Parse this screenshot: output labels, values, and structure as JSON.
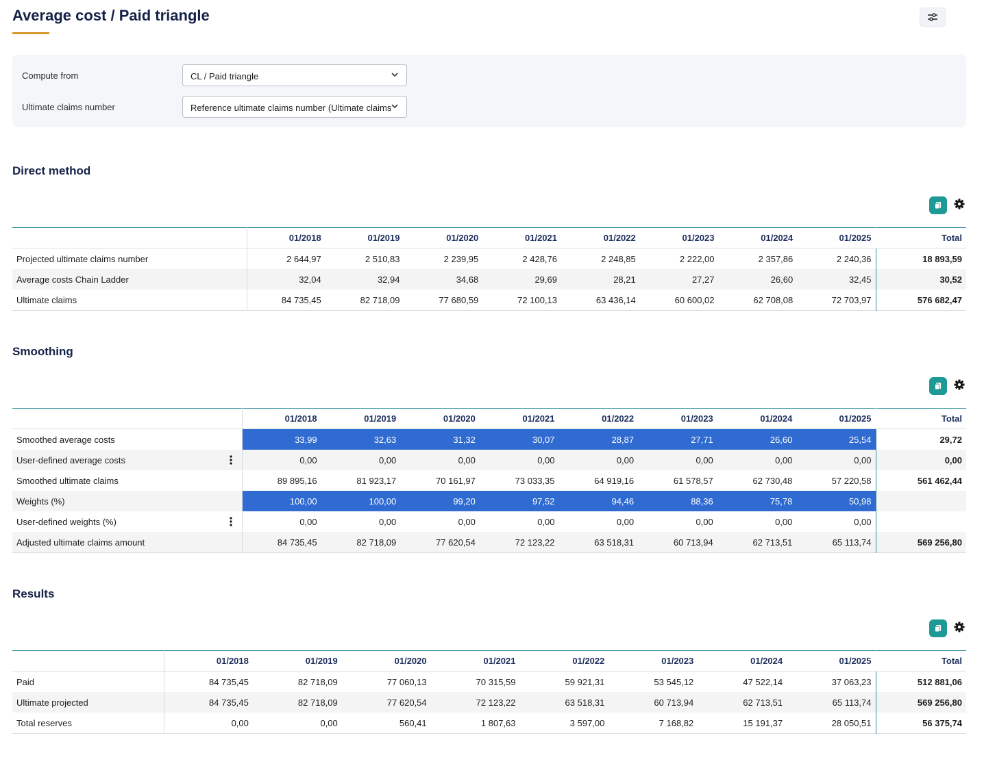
{
  "header": {
    "title": "Average cost / Paid triangle"
  },
  "controls": [
    {
      "label": "Compute from",
      "value": "CL / Paid triangle"
    },
    {
      "label": "Ultimate claims number",
      "value": "Reference ultimate claims number (Ultimate claims"
    }
  ],
  "sections": [
    {
      "title": "Direct method",
      "columns": [
        "01/2018",
        "01/2019",
        "01/2020",
        "01/2021",
        "01/2022",
        "01/2023",
        "01/2024",
        "01/2025",
        "Total"
      ],
      "rows": [
        {
          "label": "Projected ultimate claims number",
          "cells": [
            "2 644,97",
            "2 510,83",
            "2 239,95",
            "2 428,76",
            "2 248,85",
            "2 222,00",
            "2 357,86",
            "2 240,36"
          ],
          "total": "18 893,59"
        },
        {
          "label": "Average costs Chain Ladder",
          "cells": [
            "32,04",
            "32,94",
            "34,68",
            "29,69",
            "28,21",
            "27,27",
            "26,60",
            "32,45"
          ],
          "total": "30,52"
        },
        {
          "label": "Ultimate claims",
          "cells": [
            "84 735,45",
            "82 718,09",
            "77 680,59",
            "72 100,13",
            "63 436,14",
            "60 600,02",
            "62 708,08",
            "72 703,97"
          ],
          "total": "576 682,47"
        }
      ]
    },
    {
      "title": "Smoothing",
      "columns": [
        "01/2018",
        "01/2019",
        "01/2020",
        "01/2021",
        "01/2022",
        "01/2023",
        "01/2024",
        "01/2025",
        "Total"
      ],
      "rows": [
        {
          "label": "Smoothed average costs",
          "highlight": true,
          "cells": [
            "33,99",
            "32,63",
            "31,32",
            "30,07",
            "28,87",
            "27,71",
            "26,60",
            "25,54"
          ],
          "total": "29,72"
        },
        {
          "label": "User-defined average costs",
          "menu": true,
          "cells": [
            "0,00",
            "0,00",
            "0,00",
            "0,00",
            "0,00",
            "0,00",
            "0,00",
            "0,00"
          ],
          "total": "0,00"
        },
        {
          "label": "Smoothed ultimate claims",
          "cells": [
            "89 895,16",
            "81 923,17",
            "70 161,97",
            "73 033,35",
            "64 919,16",
            "61 578,57",
            "62 730,48",
            "57 220,58"
          ],
          "total": "561 462,44"
        },
        {
          "label": "Weights (%)",
          "highlight": true,
          "cells": [
            "100,00",
            "100,00",
            "99,20",
            "97,52",
            "94,46",
            "88,36",
            "75,78",
            "50,98"
          ]
        },
        {
          "label": "User-defined weights (%)",
          "menu": true,
          "cells": [
            "0,00",
            "0,00",
            "0,00",
            "0,00",
            "0,00",
            "0,00",
            "0,00",
            "0,00"
          ]
        },
        {
          "label": "Adjusted ultimate claims amount",
          "cells": [
            "84 735,45",
            "82 718,09",
            "77 620,54",
            "72 123,22",
            "63 518,31",
            "60 713,94",
            "62 713,51",
            "65 113,74"
          ],
          "total": "569 256,80"
        }
      ]
    },
    {
      "title": "Results",
      "columns": [
        "01/2018",
        "01/2019",
        "01/2020",
        "01/2021",
        "01/2022",
        "01/2023",
        "01/2024",
        "01/2025",
        "Total"
      ],
      "rows": [
        {
          "label": "Paid",
          "cells": [
            "84 735,45",
            "82 718,09",
            "77 060,13",
            "70 315,59",
            "59 921,31",
            "53 545,12",
            "47 522,14",
            "37 063,23"
          ],
          "total": "512 881,06"
        },
        {
          "label": "Ultimate projected",
          "cells": [
            "84 735,45",
            "82 718,09",
            "77 620,54",
            "72 123,22",
            "63 518,31",
            "60 713,94",
            "62 713,51",
            "65 113,74"
          ],
          "total": "569 256,80"
        },
        {
          "label": "Total reserves",
          "cells": [
            "0,00",
            "0,00",
            "560,41",
            "1 807,63",
            "3 597,00",
            "7 168,82",
            "15 191,37",
            "28 050,51"
          ],
          "total": "56 375,74"
        }
      ]
    }
  ]
}
